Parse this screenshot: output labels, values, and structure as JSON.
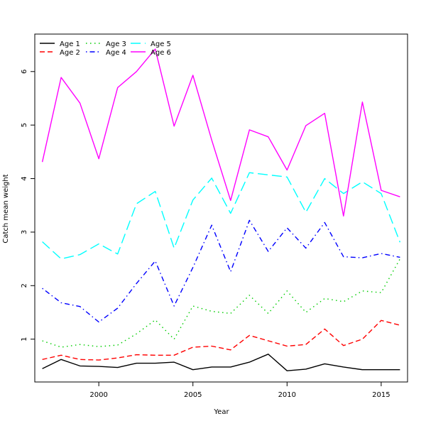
{
  "chart_data": {
    "type": "line",
    "title": "",
    "xlabel": "Year",
    "ylabel": "Catch mean weight",
    "xlim": [
      1996.6,
      2016.4
    ],
    "ylim": [
      0.2,
      6.7
    ],
    "xticks": [
      2000,
      2005,
      2010,
      2015
    ],
    "yticks": [
      1,
      2,
      3,
      4,
      5,
      6
    ],
    "x": [
      1997,
      1998,
      1999,
      2000,
      2001,
      2002,
      2003,
      2004,
      2005,
      2006,
      2007,
      2008,
      2009,
      2010,
      2011,
      2012,
      2013,
      2014,
      2015,
      2016
    ],
    "legend_position": "top-left",
    "series": [
      {
        "name": "Age 1",
        "color": "#000000",
        "dash": "solid",
        "values": [
          0.45,
          0.62,
          0.5,
          0.49,
          0.47,
          0.55,
          0.55,
          0.57,
          0.43,
          0.48,
          0.48,
          0.57,
          0.72,
          0.41,
          0.44,
          0.54,
          0.48,
          0.43,
          0.43,
          0.43
        ]
      },
      {
        "name": "Age 2",
        "color": "#ff0000",
        "dash": "dashed",
        "values": [
          0.62,
          0.7,
          0.62,
          0.61,
          0.65,
          0.71,
          0.7,
          0.7,
          0.85,
          0.87,
          0.8,
          1.07,
          0.97,
          0.87,
          0.9,
          1.19,
          0.88,
          1.0,
          1.35,
          1.26
        ]
      },
      {
        "name": "Age 3",
        "color": "#00cd00",
        "dash": "dotted",
        "values": [
          0.97,
          0.85,
          0.9,
          0.86,
          0.89,
          1.1,
          1.36,
          1.0,
          1.62,
          1.52,
          1.48,
          1.82,
          1.48,
          1.9,
          1.5,
          1.76,
          1.7,
          1.9,
          1.87,
          2.5
        ]
      },
      {
        "name": "Age 4",
        "color": "#0000ff",
        "dash": "dotdash",
        "values": [
          1.95,
          1.68,
          1.61,
          1.32,
          1.58,
          2.04,
          2.46,
          1.62,
          2.34,
          3.13,
          2.26,
          3.22,
          2.64,
          3.08,
          2.7,
          3.18,
          2.54,
          2.52,
          2.6,
          2.53
        ]
      },
      {
        "name": "Age 5",
        "color": "#00ffff",
        "dash": "longdash",
        "values": [
          2.82,
          2.5,
          2.58,
          2.78,
          2.59,
          3.53,
          3.76,
          2.7,
          3.6,
          4.01,
          3.35,
          4.11,
          4.07,
          4.03,
          3.37,
          4.0,
          3.72,
          3.94,
          3.72,
          2.81
        ]
      },
      {
        "name": "Age 6",
        "color": "#ff00ff",
        "dash": "solid",
        "values": [
          4.31,
          5.89,
          5.41,
          4.37,
          5.7,
          6.0,
          6.42,
          4.98,
          5.93,
          4.72,
          3.59,
          4.91,
          4.78,
          4.16,
          4.99,
          5.22,
          3.3,
          5.43,
          3.78,
          3.66
        ]
      }
    ]
  }
}
